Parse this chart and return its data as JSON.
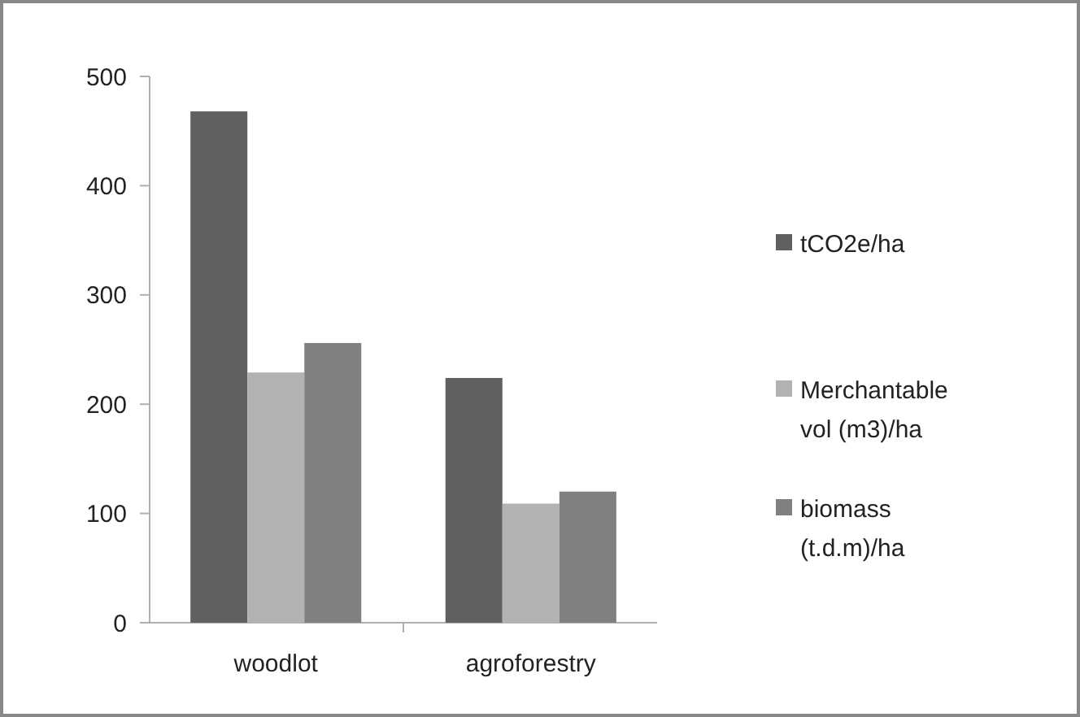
{
  "chart_data": {
    "type": "bar",
    "categories": [
      "woodlot",
      "agroforestry"
    ],
    "series": [
      {
        "name": "tCO2e/ha",
        "color": "#606060",
        "values": [
          468,
          224
        ]
      },
      {
        "name": "Merchantable vol (m3)/ha",
        "color": "#b2b2b2",
        "values": [
          229,
          109
        ]
      },
      {
        "name": "biomass (t.d.m)/ha",
        "color": "#808080",
        "values": [
          256,
          120
        ]
      }
    ],
    "ylim": [
      0,
      500
    ],
    "yticks": [
      0,
      100,
      200,
      300,
      400,
      500
    ],
    "legend": "right"
  }
}
